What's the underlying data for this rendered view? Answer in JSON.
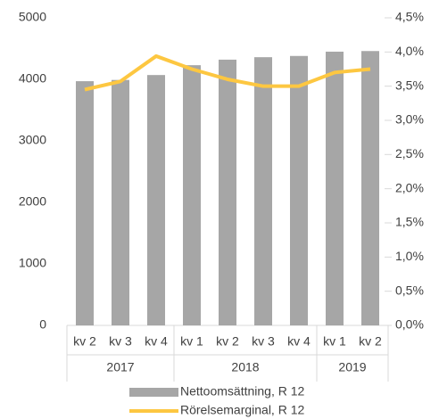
{
  "chart_data": {
    "type": "bar-line",
    "groups": [
      {
        "name": "2017",
        "categories": [
          "kv 2",
          "kv 3",
          "kv 4"
        ]
      },
      {
        "name": "2018",
        "categories": [
          "kv 1",
          "kv 2",
          "kv 3",
          "kv 4"
        ]
      },
      {
        "name": "2019",
        "categories": [
          "kv 1",
          "kv 2"
        ]
      }
    ],
    "series": [
      {
        "name": "Nettoomsättning, R 12",
        "type": "bar",
        "color": "#a6a6a6",
        "values": [
          3970,
          3990,
          4070,
          4230,
          4320,
          4360,
          4380,
          4450,
          4460
        ]
      },
      {
        "name": "Rörelsemarginal, R 12",
        "type": "line",
        "axis": "y2",
        "color": "#fdc741",
        "values": [
          3.45,
          3.57,
          3.94,
          3.75,
          3.6,
          3.5,
          3.5,
          3.7,
          3.75
        ]
      }
    ],
    "ylim": [
      0,
      5000
    ],
    "yticks": [
      0,
      1000,
      2000,
      3000,
      4000,
      5000
    ],
    "y2lim": [
      0,
      4.5
    ],
    "y2ticks": [
      {
        "value": 0,
        "label": "0,0%"
      },
      {
        "value": 0.5,
        "label": "0,5%"
      },
      {
        "value": 1,
        "label": "1,0%"
      },
      {
        "value": 1.5,
        "label": "1,5%"
      },
      {
        "value": 2,
        "label": "2,0%"
      },
      {
        "value": 2.5,
        "label": "2,5%"
      },
      {
        "value": 3,
        "label": "3,0%"
      },
      {
        "value": 3.5,
        "label": "3,5%"
      },
      {
        "value": 4,
        "label": "4,0%"
      },
      {
        "value": 4.5,
        "label": "4,5%"
      }
    ],
    "grid": false,
    "legend": "bottom"
  }
}
